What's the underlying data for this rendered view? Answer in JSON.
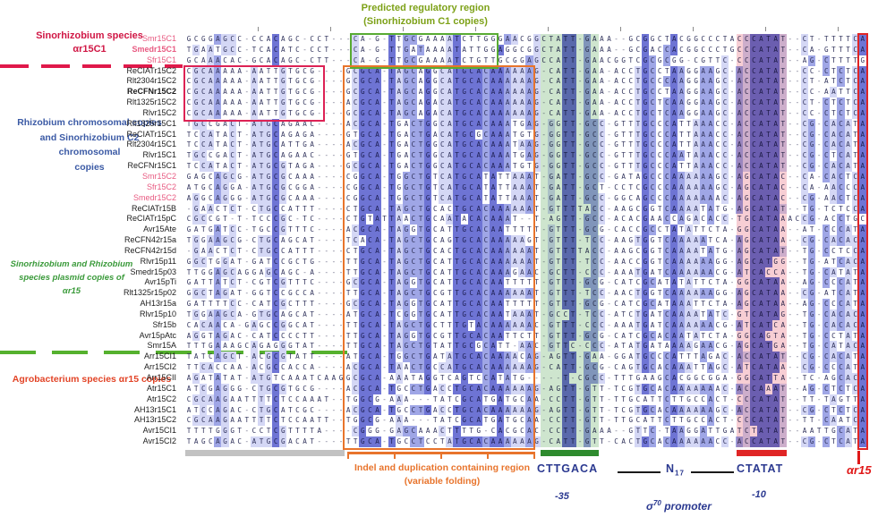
{
  "figure": {
    "left_annotations": {
      "sino_c1": {
        "lines": [
          "Sinorhizobium species",
          "αr15C1"
        ],
        "color": "#d01745"
      },
      "rhizobium_block": {
        "lines": [
          "Rhizobium chromosomal copies",
          "and Sinorhizobium C2",
          "chromosomal",
          "copies"
        ],
        "color": "#3b5aa5"
      },
      "plasmid_block": {
        "lines": [
          "Sinorhizobium and Rhizobium",
          "species plasmid copies of",
          "αr15"
        ],
        "color": "#3a9a3a"
      },
      "agro": {
        "text": "Agrobacterium species αr15 copies",
        "color": "#e24427"
      }
    },
    "top_annotation": {
      "lines": [
        "Predicted regulatory region",
        "(Sinorhizobium C1 copies)"
      ],
      "color": "#7da117"
    },
    "bottom_annotations": {
      "indel_note": {
        "lines": [
          "Indel and duplication containing region",
          "(variable folding)"
        ],
        "color": "#e8742c"
      },
      "minus35": {
        "consensus": "CTTGACA",
        "label": "-35",
        "bar_color": "#2e8b2e"
      },
      "spacer": {
        "base": "N",
        "sub": "17"
      },
      "sigma": {
        "symbol": "σ",
        "sup": "70",
        "rest": " promoter"
      },
      "minus10": {
        "consensus": "CTATAT",
        "label": "-10",
        "bar_color": "#e02525"
      },
      "tss": {
        "label": "αr15",
        "color": "#e01818"
      }
    },
    "colors": {
      "pink_label": "#e85b82",
      "black_label": "#1c1c1c",
      "pid_dark": "#6e74d4",
      "pid_mid": "#9fa6e6",
      "pid_light": "#d4d7f5",
      "green_box": "#58ab33",
      "red_box": "#dd2255",
      "orange_box": "#e8742c",
      "tss_box": "#e02525",
      "gray_bar": "#c2c2c2"
    },
    "highlights": {
      "boxes": [
        {
          "name": "green-box",
          "rows": [
            1,
            3
          ],
          "cols": [
            24,
            43
          ],
          "stroke": "#58ab33"
        },
        {
          "name": "red-box",
          "rows": [
            4,
            8
          ],
          "cols": [
            1,
            19
          ],
          "stroke": "#dd2255"
        },
        {
          "name": "orange-box",
          "rows": [
            4,
            39
          ],
          "cols": [
            23,
            48
          ],
          "stroke": "#e8742c"
        },
        {
          "name": "tss-box",
          "rows": [
            1,
            39
          ],
          "cols": [
            94,
            94
          ],
          "stroke": "#e02525"
        }
      ],
      "tints": [
        {
          "name": "minus35-tint",
          "cols": [
            50,
            57
          ],
          "fill": "rgba(60,150,60,0.25)"
        },
        {
          "name": "minus10-tint",
          "cols": [
            77,
            83
          ],
          "fill": "rgba(228,80,100,0.28)"
        }
      ],
      "bars": [
        {
          "name": "gray-bar",
          "cols": [
            1,
            22
          ],
          "color": "#c2c2c2"
        },
        {
          "name": "minus35-bar",
          "cols": [
            50,
            57
          ],
          "color": "#2e8b2e"
        },
        {
          "name": "minus10-bar",
          "cols": [
            77,
            83
          ],
          "color": "#e02525"
        }
      ]
    },
    "alignment": {
      "rows": [
        {
          "name": "Smr15C1",
          "group": "sino",
          "bold": false,
          "seq": "GCGGAGCC-CCACAGC-CCT---CA-G-TTGCGAAAATCTTGGGAACGGCTATT-GAAA--GCGGCTACGGCCCTACCCATAT--CT-TTTTCA"
        },
        {
          "name": "Smedr15C1",
          "group": "sino",
          "bold": true,
          "seq": "TGAATGCC-TCACATC-CCT---CA-G-TTGATAAAATATTGGAGGCGGCTATT-GAAA--GCGACCACGGCCCTGCCCATAT--CA-GTTTCA"
        },
        {
          "name": "Sfr15C1",
          "group": "sino",
          "bold": false,
          "seq": "GCAAACAC-GCACAGC-CTT---CA-G-TTGCGAAAATCTGTTGCGGAGCCATT-GAACGGTCGCGCGG-CGTTC-CCCATAT--AG-CTTTTG"
        },
        {
          "name": "ReCIATr15C2",
          "group": "std",
          "bold": false,
          "seq": "CGCAAAAA-AATTGTGCG----GCGCA-TAGCAGGCATGCACAAAAAAG-CATT-GAA-ACCTGCCTAAGGAAGC-ACCATAT--CC-CTCTCA"
        },
        {
          "name": "Rlt2304r15C2",
          "group": "std",
          "bold": false,
          "seq": "CGCAAAAA-AATTGTGCG----GCGCA-TAGCAGGCATGCACAAAAAAG-CATT-GAA-ACCTGCCCAAGGAAGC-ACCATAT--CT-ATCTCA"
        },
        {
          "name": "ReCFNr15C2",
          "group": "std",
          "bold": true,
          "seq": "CGCAAAAA-AATTGTGCG----GCGCA-TAGCAGGCATGCACAAAAAAG-CATT-GAA-ACCTGCCTAAGGAAGC-ACCATAT--CC-AATTCA"
        },
        {
          "name": "Rlt1325r15C2",
          "group": "std",
          "bold": false,
          "seq": "CGCAAAAA-AATTGTGCG----ACGCA-TAGCAGACATGCACAAAAAAG-CATT-GAA-ACCTGCTCAAGGAAGC-ACCATAT--CT-CTCTCA"
        },
        {
          "name": "Rlvr15C2",
          "group": "std",
          "bold": false,
          "seq": "CGCAAAAA-AATTGTGCG----GCGCA-TAGCAGACATGCACAAAAAAG-CATT-GAA-ACCTGCTCAAGGAAGC-ACCATAT--CC-CTCTCA"
        },
        {
          "name": "Rlt1325r15C1",
          "group": "std",
          "bold": false,
          "seq": "TGCCGACT-ATGCAGAAC----ACGCA-TGACTGGCATGCACAAATGAG-GGTT-GCC-GTTTGCCCATTAAACC-ACCATAT--CG-CACATA"
        },
        {
          "name": "ReCIATr15C1",
          "group": "std",
          "bold": false,
          "seq": "TCCATACT-ATGCAGAGA----GTGCA-TGACTGACATGCGCAAATGTG-GGTT-GCC-GTTTGCCCATTAAACC-ACCATAT--CG-CACATA"
        },
        {
          "name": "Rlt2304r15C1",
          "group": "std",
          "bold": false,
          "seq": "TCCATACT-ATGCATTGA----ACGCA-TGACTGGCATGCACAAATAAG-GGTT-GCC-GTTTGCCCATTAAACC-ACCATAT--CG-CACATA"
        },
        {
          "name": "Rlvr15C1",
          "group": "std",
          "bold": false,
          "seq": "TGCCGACT-ATGCAGAAC----GTGCA-TGACTGGCATGCACAAATGAG-GGTT-GCC-GTTTGCCCAATAAACC-ACCATAT--CG-CTCATA"
        },
        {
          "name": "ReCFNr15C1",
          "group": "std",
          "bold": false,
          "seq": "TCCATACT-ATGCGTAGA----GCGCA-TGACTGGCATGCACAAATGTG-GGTT-GCC-GTTTGCCCATTAAACC-ACCATAT--CG-CACATA"
        },
        {
          "name": "Smr15C2",
          "group": "sino",
          "bold": false,
          "seq": "GAGCAGCG-ATGCGCAAA----CGGCA-TGGCTGTCATGCATATTAAAT-GATT-GCC-GATAGCCCAAAAAAGC-AGCATAC--CA-CACTCA"
        },
        {
          "name": "Sfr15C2",
          "group": "sino",
          "bold": false,
          "seq": "ATGCAGGA-ATGCGCGGA----CGGCA-TGGCTGTCATGCATATTAAAT-GATT-GCT-CCTCGCCCAAAAAAGC-AGCATAC--CA-AACCCA"
        },
        {
          "name": "Smedr15C2",
          "group": "sino",
          "bold": false,
          "seq": "AGGCAGGG-ATGCGCAAA----CGGCA-TGGCTGTCATGCATATTAAAT-GATT-GCC-GGCAGCCCAAAAAAAC-AGCATAC--CG-AACTCA"
        },
        {
          "name": "ReCIATr15B",
          "group": "std",
          "bold": false,
          "seq": "-GAACTCT-CTGCCATTT----CTGCA-TAGCTGCACTGCACAAAAAAT-GTTTTACC-AAGCGGTCAAAATATG-AGCATAT--TG-TCTCCA"
        },
        {
          "name": "ReCIATr15pC",
          "group": "std",
          "bold": false,
          "seq": "CGCCGT-T-TCCCGC-TC----CTGTATTAACTGCAATACACAAAT--T-AGTT-GCC-ACACGAACCAGACACC-TGCATAAACCG-ACCTGC"
        },
        {
          "name": "Avr15Ate",
          "group": "std",
          "bold": false,
          "seq": "GATGATCC-TGCCGTTTC----ACGCA-TAGGTGCATTGCACAATTTTT-GTTT-GCG-CACCGCCTATATTCTA-GGCATAA--AT-CCCATA"
        },
        {
          "name": "ReCFN42r15a",
          "group": "std",
          "bold": false,
          "seq": "TGGAAGCG-CTGCAGCAT----TCACA-TAGCTGCAGTGCACAAAAAGT-GTTT-TCC-AAGTGGTCAAAAATCA-AGCATAA--CG-CACACA"
        },
        {
          "name": "ReCFN42r15d",
          "group": "std",
          "bold": false,
          "seq": "-GAACTCT-CTGCCATTT----CTGCA-TAGCTGCACTGCACAAAAAAT-GTTTTACC-AAGCGGTCAAAATATG-AGCATAT--TG-CCTCCA"
        },
        {
          "name": "Rlvr15p11",
          "group": "std",
          "bold": false,
          "seq": "GGCTGGAT-GATCCGCTG----TTGCA-TAGCTGCATTGCACAAAAAAT-GTTT-TCC-AACCGGTCAAAAAAGG-AGCATGG--TG-ATCACA"
        },
        {
          "name": "Smedr15p03",
          "group": "std",
          "bold": false,
          "seq": "TTGGAGCAGGAGCAGC-A----TTGCA-TAGCTGCATTGCACAAAGAAC-GCTT-CCC-AAATGATCAAAAAACG-ATCACCA--TG-CATATA"
        },
        {
          "name": "Avr15pTi",
          "group": "std",
          "bold": false,
          "seq": "GATTATCT-CGTCGTTTC----GCGCA-TAGGTGCATTGCACAATTTTT-GTTT-GCG-CATCGCATATATTCTA-GGCATAA--AG-CCCATA"
        },
        {
          "name": "Rlt1325r15p02",
          "group": "std",
          "bold": false,
          "seq": "GGCTAGAT-GGTCCGCCA----TTGCA-TAGCTGCGTTGCACAAAAAAT-GTTT-TCC-AACTGGTCAAAAAAGG-AGCATAA--CG-ATCATA"
        },
        {
          "name": "AH13r15a",
          "group": "std",
          "bold": false,
          "seq": "GATTTTCC-CATCGCTTT----GCGCA-TAGGTGCATTGCACAATTTTT-GTTT-GCG-CATCGCATAAATTCTA-AGCATAA--AG-CCCATA"
        },
        {
          "name": "Rlvr15p10",
          "group": "std",
          "bold": false,
          "seq": "TGGAAGCA-GTGCAGCAT----ATGCA-TCGGTGCATTGCACAATAAAT-GCCT-TCC-ATCTGATCAAAATATC-GTCATAG--TG-CACACA"
        },
        {
          "name": "Sfr15b",
          "group": "std",
          "bold": false,
          "seq": "CACAACA-GAGCCGGCAT----TTGCA-TAGCTGCTTTGTACAAAAAAC-GTTT-CCC-AAATGATCAAAAAACG-ATCATCA--TG-CACACA"
        },
        {
          "name": "Avr15pAtc",
          "group": "std",
          "bold": false,
          "seq": "AGGTAGAC-CATCCCCTT----TTGCA-TAGGTGCGTTGCACAATTCTT-GTTT-GCG-CATCGCACAATATCTA-GGCAGTA--TG-CCTATA"
        },
        {
          "name": "Smr15A",
          "group": "std",
          "bold": false,
          "seq": "TTTGAAAGCAGAGGGTAT----TTGCA-TAGCTGTATTGCGCATT-AAC-GTTC-CCC-ATATGATAAAAGAACG-AGCATGA--TG-CATACA"
        },
        {
          "name": "Arr15CI1",
          "group": "std",
          "bold": false,
          "seq": "TATCAGCT-ACGCGTATT----ATGCA-TGGCTGATATGCACAAAACAG-AGTT-GAA-GGATGCCCATTTAGAC-ACCATAT--CG-CACATA"
        },
        {
          "name": "Arr15CI2",
          "group": "std",
          "bold": false,
          "seq": "TTCACCAA-ACGCCACCA----ACGCA-TAACTGCCATGCACAAAAAAG-CATT-GCG-CAGTGCACAAATTAGC-ATCATAA--CG-CCCATA"
        },
        {
          "name": "Arr15CII",
          "group": "std",
          "bold": false,
          "seq": "AGATATAT-ATGTCAAATCAAGGCGCA-AAATAGGTCAGTCCATATG-----T-CGCC-TTTGAAGCACGGCGGA-GGCATTA--TC-AGCACA"
        },
        {
          "name": "Atr15C1",
          "group": "std",
          "bold": false,
          "seq": "ATCGAGGG-CTGCGTGCG----ACGCA-TGCCTGACCTGCACAAAAAAG-AGTT-GTT-TCGTGCACAAAAAAAC-ACCAAAT--AG-CTCTCA"
        },
        {
          "name": "Atr15C2",
          "group": "std",
          "bold": false,
          "seq": "CGCAAGAATTTTCTCCAAAT--TGGCG-AAA---TATCGCATGATGCAA-CCTT-GTT-TTGCATTCTTGCCACT-CCCATAT--TT-TAGTTA"
        },
        {
          "name": "AH13r15C1",
          "group": "std",
          "bold": false,
          "seq": "ATCCAGAC-CTGCATCGC----ACGCA-TGCCTGACCTGCACAAAAAAG-AGTT-GTT-TCGTGCACAAAAAAGC-ACCATAT--CG-CTCTCA"
        },
        {
          "name": "AH13r15C2",
          "group": "std",
          "bold": false,
          "seq": "CGCAAGAATTTTCTCCAATT--TGGCG-AAA---TATCGCATGATGCAA-CCTT-GTT-TTGCATTCTTGCCACT-CCCATAT--TT-CAATCA"
        },
        {
          "name": "Avr15CI1",
          "group": "std",
          "bold": false,
          "seq": "TTTTGGGT-CCTCGTTTTA----CGGG-GAGCAAACTTTTG-CACGCAC-CCTT-GAAA--GTTC-TAAGGATTGATCTATAT--AATTGCATA"
        },
        {
          "name": "Avr15CI2",
          "group": "std",
          "bold": false,
          "seq": "TAGCAGAC-ATGCGACAT----TTGCA-TGCCTCCTATGCACAAAAAAG-CATT-GTT-CACTGCACAAAAAACC-ACCATAT--CG-CTCATA"
        }
      ]
    }
  }
}
